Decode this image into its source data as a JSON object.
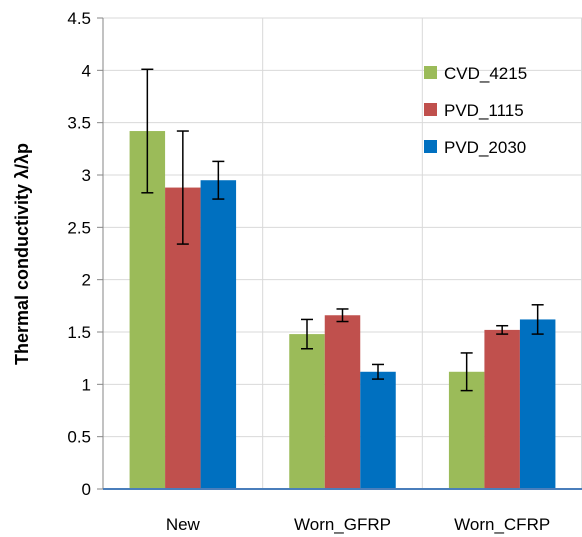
{
  "chart_data": {
    "type": "bar",
    "title": "",
    "xlabel": "",
    "ylabel": "Thermal conductivity λ/λp",
    "ylim": [
      0,
      4.5
    ],
    "yticks": [
      0,
      0.5,
      1,
      1.5,
      2,
      2.5,
      3,
      3.5,
      4,
      4.5
    ],
    "ytick_labels": [
      "0",
      "0.5",
      "1",
      "1.5",
      "2",
      "2.5",
      "3",
      "3.5",
      "4",
      "4.5"
    ],
    "grid": true,
    "legend_position": "top-right",
    "categories": [
      "New",
      "Worn_GFRP",
      "Worn_CFRP"
    ],
    "series": [
      {
        "name": "CVD_4215",
        "color": "#9bbb59",
        "values": [
          3.42,
          1.48,
          1.12
        ],
        "errors": [
          0.59,
          0.14,
          0.18
        ]
      },
      {
        "name": "PVD_1115",
        "color": "#c0504d",
        "values": [
          2.88,
          1.66,
          1.52
        ],
        "errors": [
          0.54,
          0.06,
          0.04
        ]
      },
      {
        "name": "PVD_2030",
        "color": "#0070c0",
        "values": [
          2.95,
          1.12,
          1.62
        ],
        "errors": [
          0.18,
          0.07,
          0.14
        ]
      }
    ]
  }
}
